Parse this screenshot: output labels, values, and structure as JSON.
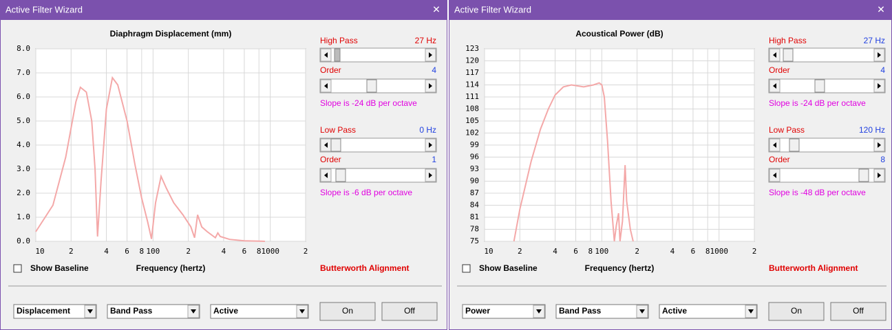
{
  "windows": [
    {
      "title": "Active Filter Wizard",
      "close": "✕",
      "chart_data": {
        "type": "line",
        "title": "Diaphragm Displacement (mm)",
        "x_label": "Frequency (hertz)",
        "x_log": true,
        "grid": true,
        "xlim": [
          10,
          2000
        ],
        "xticks": [
          10,
          {
            "value": 20,
            "label": "2"
          },
          {
            "value": 40,
            "label": "4"
          },
          {
            "value": 60,
            "label": "6"
          },
          {
            "value": 80,
            "label": "8"
          },
          100,
          {
            "value": 200,
            "label": "2"
          },
          {
            "value": 400,
            "label": "4"
          },
          {
            "value": 600,
            "label": "6"
          },
          {
            "value": 800,
            "label": "8"
          },
          1000,
          {
            "value": 2000,
            "label": "2"
          }
        ],
        "ylim": [
          0,
          8
        ],
        "yticks": [
          {
            "value": 0,
            "label": "0.0"
          },
          {
            "value": 1,
            "label": "1.0"
          },
          {
            "value": 2,
            "label": "2.0"
          },
          {
            "value": 3,
            "label": "3.0"
          },
          {
            "value": 4,
            "label": "4.0"
          },
          {
            "value": 5,
            "label": "5.0"
          },
          {
            "value": 6,
            "label": "6.0"
          },
          {
            "value": 7,
            "label": "7.0"
          },
          {
            "value": 8,
            "label": "8.0"
          }
        ],
        "x": [
          10,
          14,
          18,
          22,
          24,
          27,
          30,
          32,
          33.6,
          36,
          40,
          45,
          50,
          60,
          70,
          80,
          90,
          97,
          105,
          117,
          130,
          150,
          180,
          210,
          226,
          240,
          260,
          290,
          340,
          357,
          374,
          450,
          600,
          900
        ],
        "series": [
          {
            "color": "#f4a8a8",
            "values": [
              0.4,
              1.5,
              3.5,
              5.8,
              6.4,
              6.2,
              5.0,
              3.0,
              0.2,
              2.5,
              5.5,
              6.8,
              6.5,
              5.0,
              3.2,
              1.8,
              0.8,
              0.1,
              1.6,
              2.7,
              2.2,
              1.6,
              1.1,
              0.6,
              0.15,
              1.1,
              0.6,
              0.4,
              0.15,
              0.35,
              0.2,
              0.08,
              0.02,
              0
            ]
          }
        ]
      },
      "controls": {
        "high_pass": {
          "label": "High Pass",
          "value": "27 Hz"
        },
        "high_order": {
          "label": "Order",
          "value": "4"
        },
        "high_slope": "Slope is -24 dB per octave",
        "low_pass": {
          "label": "Low Pass",
          "value": "0 Hz"
        },
        "low_order": {
          "label": "Order",
          "value": "1"
        },
        "low_slope": "Slope is -6 dB per octave",
        "show_baseline": "Show Baseline",
        "alignment": "Butterworth Alignment",
        "dropdowns": [
          "Displacement",
          "Band Pass",
          "Active"
        ],
        "buttons": [
          "On",
          "Off"
        ]
      }
    },
    {
      "title": "Active Filter Wizard",
      "close": "✕",
      "chart_data": {
        "type": "line",
        "title": "Acoustical Power (dB)",
        "x_label": "Frequency (hertz)",
        "x_log": true,
        "grid": true,
        "xlim": [
          10,
          2000
        ],
        "xticks": [
          10,
          {
            "value": 20,
            "label": "2"
          },
          {
            "value": 40,
            "label": "4"
          },
          {
            "value": 60,
            "label": "6"
          },
          {
            "value": 80,
            "label": "8"
          },
          100,
          {
            "value": 200,
            "label": "2"
          },
          {
            "value": 400,
            "label": "4"
          },
          {
            "value": 600,
            "label": "6"
          },
          {
            "value": 800,
            "label": "8"
          },
          1000,
          {
            "value": 2000,
            "label": "2"
          }
        ],
        "ylim": [
          75,
          123
        ],
        "yticks": [
          75,
          78,
          81,
          84,
          87,
          90,
          93,
          96,
          99,
          102,
          105,
          108,
          111,
          114,
          117,
          120,
          123
        ],
        "x": [
          17.8,
          20,
          25,
          30,
          35,
          40,
          47,
          55,
          70,
          85,
          95,
          100,
          105,
          112,
          120,
          128,
          133,
          139,
          143,
          150,
          158,
          163,
          175,
          185
        ],
        "series": [
          {
            "color": "#f4a8a8",
            "values": [
              75,
              83,
              95,
              103,
              108,
              111.5,
              113.5,
              114,
              113.5,
              114,
              114.5,
              114,
              111,
              100,
              85,
              75,
              79,
              82,
              75,
              80,
              94,
              85,
              78,
              75
            ]
          }
        ]
      },
      "controls": {
        "high_pass": {
          "label": "High Pass",
          "value": "27 Hz"
        },
        "high_order": {
          "label": "Order",
          "value": "4"
        },
        "high_slope": "Slope is -24 dB per octave",
        "low_pass": {
          "label": "Low Pass",
          "value": "120 Hz"
        },
        "low_order": {
          "label": "Order",
          "value": "8"
        },
        "low_slope": "Slope is -48 dB per octave",
        "show_baseline": "Show Baseline",
        "alignment": "Butterworth Alignment",
        "dropdowns": [
          "Power",
          "Band Pass",
          "Active"
        ],
        "buttons": [
          "On",
          "Off"
        ]
      }
    }
  ]
}
